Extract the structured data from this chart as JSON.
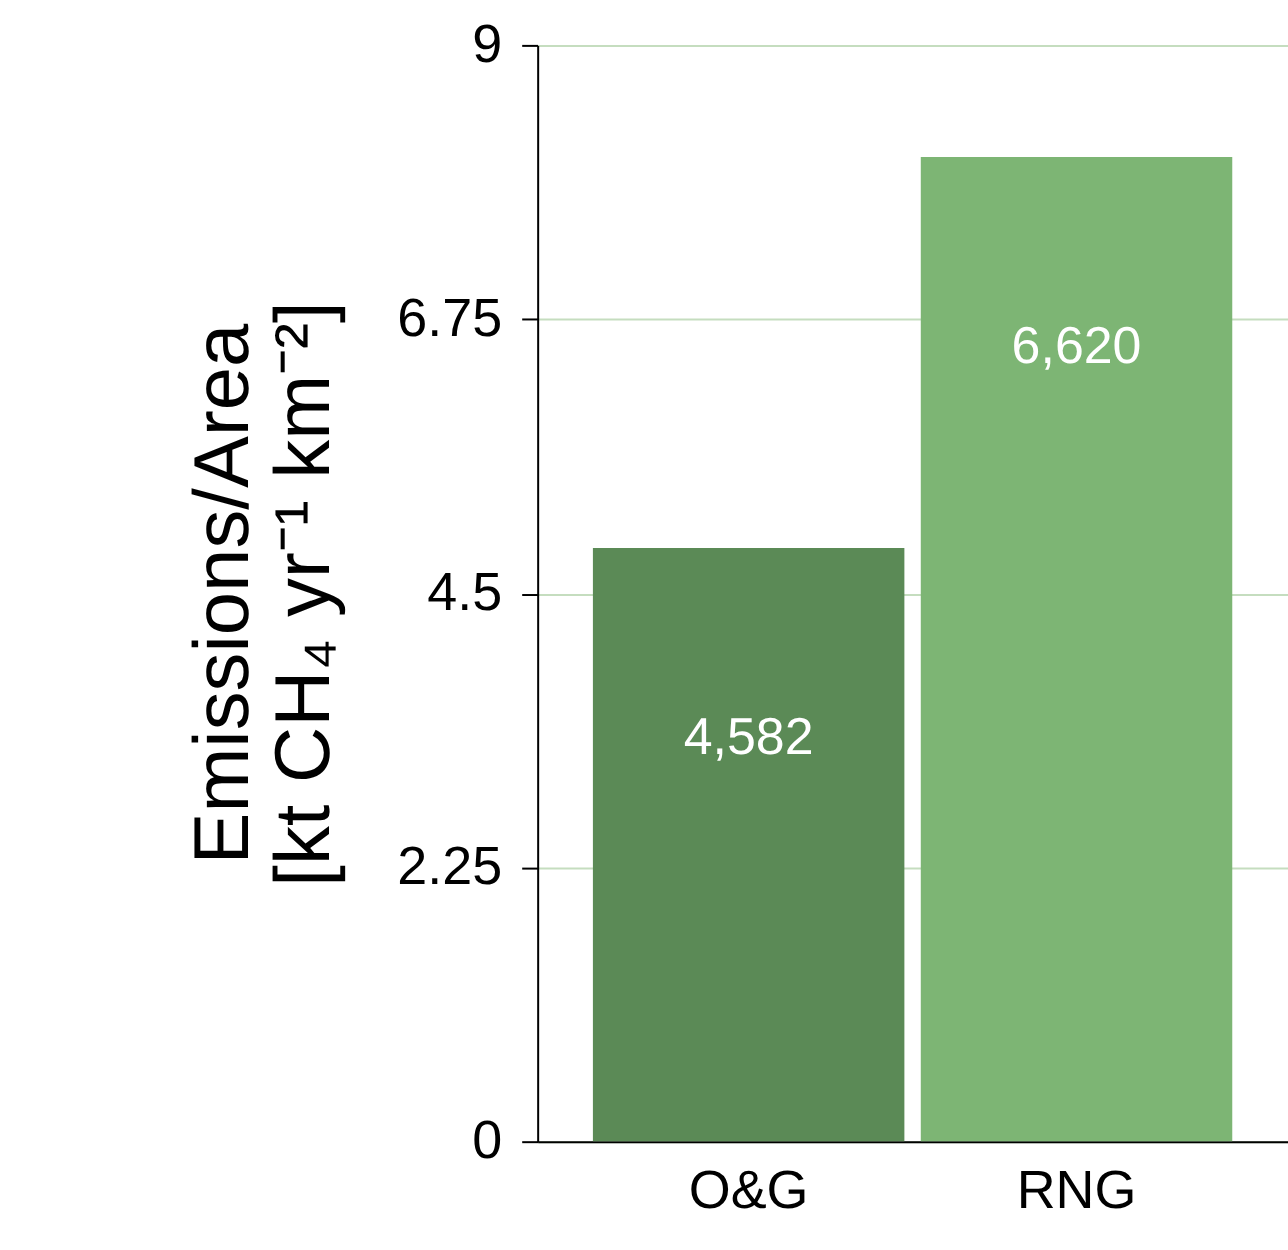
{
  "chart_data": {
    "type": "bar",
    "ylabel": "Emissions/Area\n[kt CH₄ yr⁻¹ km⁻²]",
    "categories": [
      "O&G",
      "RNG"
    ],
    "values": [
      4.87,
      8.08
    ],
    "colors": [
      "#5b8a56",
      "#7db574"
    ],
    "annotations": [
      "4,582",
      "6,620"
    ],
    "ylim": [
      0,
      9
    ],
    "yticks": [
      0,
      2.25,
      4.5,
      6.75,
      9
    ],
    "grid": "y"
  }
}
